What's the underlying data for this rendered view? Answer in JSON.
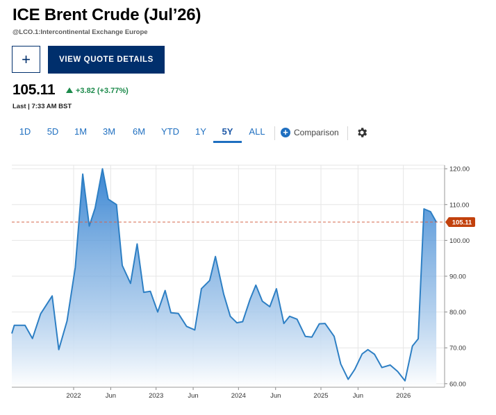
{
  "header": {
    "title": "ICE Brent Crude (Jul’26)",
    "subtitle": "@LCO.1:Intercontinental Exchange Europe"
  },
  "actions": {
    "add_label": "+",
    "quote_label": "VIEW QUOTE DETAILS"
  },
  "quote": {
    "price": "105.11",
    "change": "+3.82 (+3.77%)",
    "last": "Last | 7:33 AM BST"
  },
  "ranges": [
    "1D",
    "5D",
    "1M",
    "3M",
    "6M",
    "YTD",
    "1Y",
    "5Y",
    "ALL"
  ],
  "active_range": "5Y",
  "comparison_label": "Comparison",
  "colors": {
    "line": "#2d7fc4",
    "area_top": "#2f7fd0",
    "area_bottom": "#ffffff",
    "last_price_line": "#d5644a",
    "price_tag": "#c2410c",
    "positive": "#1c8a4b",
    "brand": "#002f6c"
  },
  "chart_data": {
    "type": "area",
    "x_start": 2021.25,
    "x_end": 2026.5,
    "ylim": [
      59,
      121
    ],
    "y_ticks": [
      "60.00",
      "70.00",
      "80.00",
      "90.00",
      "100.00",
      "110.00",
      "120.00"
    ],
    "x_ticks": [
      {
        "label": "2022",
        "x": 2022.0
      },
      {
        "label": "Jun",
        "x": 2022.45
      },
      {
        "label": "2023",
        "x": 2023.0
      },
      {
        "label": "Jun",
        "x": 2023.45
      },
      {
        "label": "2024",
        "x": 2024.0
      },
      {
        "label": "Jun",
        "x": 2024.45
      },
      {
        "label": "2025",
        "x": 2025.0
      },
      {
        "label": "Jun",
        "x": 2025.45
      },
      {
        "label": "2026",
        "x": 2026.0
      }
    ],
    "last_price": 105.11,
    "last_price_label": "105.11",
    "series": [
      {
        "x": [
          2021.25,
          2021.28,
          2021.41,
          2021.5,
          2021.6,
          2021.74,
          2021.82,
          2021.92,
          2022.02,
          2022.11,
          2022.19,
          2022.26,
          2022.35,
          2022.42,
          2022.52,
          2022.59,
          2022.69,
          2022.77,
          2022.85,
          2022.93,
          2023.02,
          2023.11,
          2023.18,
          2023.27,
          2023.37,
          2023.47,
          2023.55,
          2023.65,
          2023.72,
          2023.82,
          2023.9,
          2023.98,
          2024.05,
          2024.14,
          2024.21,
          2024.29,
          2024.38,
          2024.46,
          2024.55,
          2024.62,
          2024.71,
          2024.81,
          2024.89,
          2024.98,
          2025.05,
          2025.16,
          2025.24,
          2025.33,
          2025.41,
          2025.5,
          2025.57,
          2025.65,
          2025.74,
          2025.84,
          2025.93,
          2026.02,
          2026.11,
          2026.18,
          2026.25,
          2026.33,
          2026.4
        ],
        "y": [
          74,
          76.3,
          76.3,
          72.6,
          79.5,
          84.5,
          69.5,
          77.5,
          92.5,
          118.5,
          104,
          109,
          120,
          111.5,
          110,
          93,
          88,
          99,
          85.5,
          85.8,
          80,
          86,
          79.8,
          79.6,
          76,
          75,
          86.5,
          88.8,
          95.5,
          85,
          78.8,
          77,
          77.3,
          83.5,
          87.5,
          83,
          81.5,
          86.5,
          76.8,
          78.8,
          78,
          73.2,
          73,
          76.7,
          76.8,
          73.2,
          65.5,
          61.2,
          64,
          68.3,
          69.5,
          68.2,
          64.5,
          65.2,
          63.4,
          60.8,
          70.5,
          72.5,
          108.8,
          108,
          105.11
        ]
      }
    ]
  }
}
